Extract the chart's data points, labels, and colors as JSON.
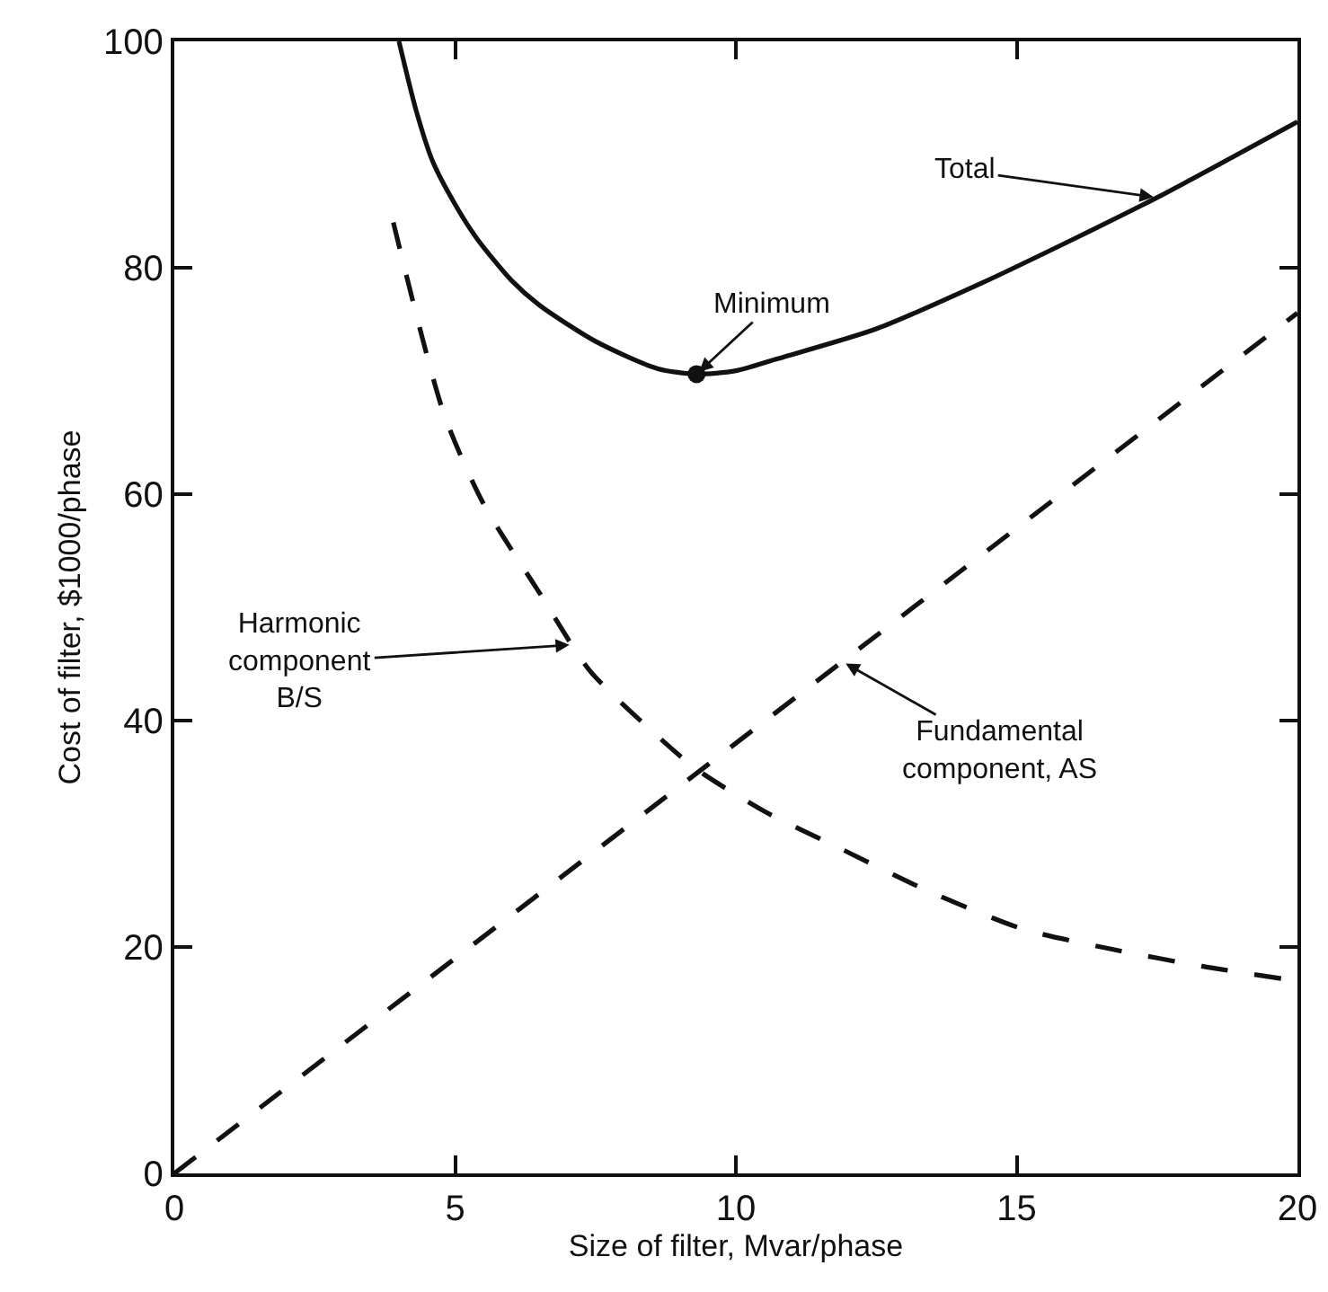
{
  "chart_data": {
    "type": "line",
    "xlabel": "Size of filter, Mvar/phase",
    "ylabel": "Cost of filter, $1000/phase",
    "xlim": [
      0,
      20
    ],
    "ylim": [
      0,
      100
    ],
    "xticks": [
      0,
      5,
      10,
      15,
      20
    ],
    "yticks": [
      0,
      20,
      40,
      60,
      80,
      100
    ],
    "series": [
      {
        "color": "#111111",
        "line_style": "solid",
        "x": [
          4.0,
          4.3,
          4.6,
          5.0,
          5.4,
          6.0,
          6.5,
          7.5,
          8.6,
          9.3,
          10.0,
          10.7,
          12.5,
          14.4,
          16.0,
          17.5,
          20
        ],
        "values": [
          100,
          94,
          89.4,
          85.6,
          82.5,
          78.9,
          76.7,
          73.5,
          71.1,
          70.6,
          70.9,
          71.9,
          74.6,
          78.7,
          82.5,
          86.2,
          92.9
        ]
      },
      {
        "color": "#111111",
        "line_style": "dashed",
        "x": [
          3.9,
          4.8,
          5.5,
          6.5,
          7.4,
          8.7,
          9.3,
          10.5,
          11.9,
          13.4,
          15.1,
          16.7,
          18.3,
          20
        ],
        "values": [
          84,
          67.1,
          59.2,
          51.3,
          44.4,
          38.2,
          35.7,
          32,
          28.6,
          25,
          21.6,
          19.8,
          18.3,
          17
        ]
      },
      {
        "color": "#111111",
        "line_style": "dashed",
        "x": [
          0,
          20
        ],
        "values": [
          0,
          76
        ]
      },
      {
        "type": "scatter",
        "color": "#111111",
        "marker": "circle",
        "x": [
          9.3
        ],
        "values": [
          70.6
        ]
      }
    ],
    "annotations": [
      {
        "text": "Total",
        "x": 17.5,
        "y": 86.2
      },
      {
        "text": "Minimum",
        "x": 9.3,
        "y": 70.6
      },
      {
        "text": "Harmonic\ncomponent\nB/S",
        "x": 7.1,
        "y": 46.7
      },
      {
        "text": "Fundamental\ncomponent, AS",
        "x": 11.9,
        "y": 45.2
      }
    ]
  }
}
